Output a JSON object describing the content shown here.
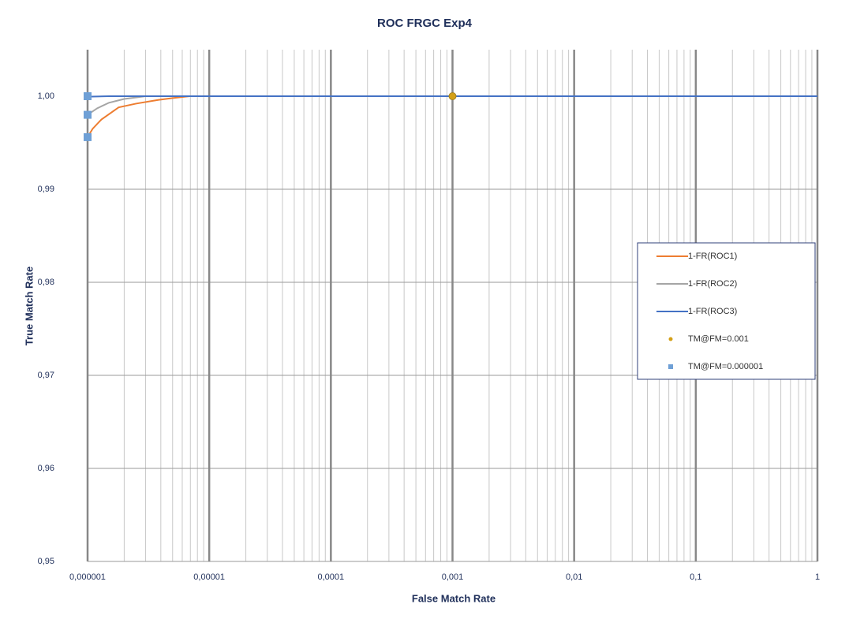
{
  "chart_data": {
    "type": "line",
    "title": "ROC FRGC Exp4",
    "x_label": "False Match Rate",
    "y_label": "True Match Rate",
    "x_log": true,
    "grid": true,
    "minor_grid": true,
    "legend": "right",
    "xlim": [
      1e-06,
      1
    ],
    "ylim": [
      0.95,
      1.005
    ],
    "xticks": [
      {
        "value": 1e-06,
        "label": "0,000001"
      },
      {
        "value": 1e-05,
        "label": "0,00001"
      },
      {
        "value": 0.0001,
        "label": "0,0001"
      },
      {
        "value": 0.001,
        "label": "0,001"
      },
      {
        "value": 0.01,
        "label": "0,01"
      },
      {
        "value": 0.1,
        "label": "0,1"
      },
      1
    ],
    "yticks": [
      {
        "value": 0.95,
        "label": "0,95"
      },
      {
        "value": 0.96,
        "label": "0,96"
      },
      {
        "value": 0.97,
        "label": "0,97"
      },
      {
        "value": 0.98,
        "label": "0,98"
      },
      {
        "value": 0.99,
        "label": "0,99"
      },
      {
        "value": 1.0,
        "label": "1,00"
      }
    ],
    "series": [
      {
        "name": "1-FR(ROC1)",
        "color": "#ed7d31",
        "style": "line",
        "x": [
          1e-06,
          1.1e-06,
          1.3e-06,
          1.8e-06,
          2.5e-06,
          3.8e-06,
          5e-06,
          6.9e-06,
          1
        ],
        "values": [
          0.9956,
          0.9965,
          0.9975,
          0.9988,
          0.9992,
          0.9996,
          0.9998,
          1.0,
          1.0
        ]
      },
      {
        "name": "1-FR(ROC2)",
        "color": "#a5a5a5",
        "style": "line",
        "x": [
          1e-06,
          1.2e-06,
          1.5e-06,
          2e-06,
          3e-06,
          1
        ],
        "values": [
          0.998,
          0.9987,
          0.9993,
          0.9997,
          1.0,
          1.0
        ]
      },
      {
        "name": "1-FR(ROC3)",
        "color": "#4472c4",
        "style": "line",
        "x": [
          1e-06,
          1.5e-06,
          1
        ],
        "values": [
          0.99995,
          1.0,
          1.0
        ]
      },
      {
        "name": "TM@FM=0.001",
        "color": "#d4a017",
        "style": "marker",
        "x": [
          0.001
        ],
        "values": [
          1.0
        ]
      },
      {
        "name": "TM@FM=0.000001",
        "color": "#6fa0d6",
        "style": "marker",
        "x": [
          1e-06,
          1e-06,
          1e-06
        ],
        "values": [
          1.0,
          0.998,
          0.9956
        ]
      }
    ]
  }
}
